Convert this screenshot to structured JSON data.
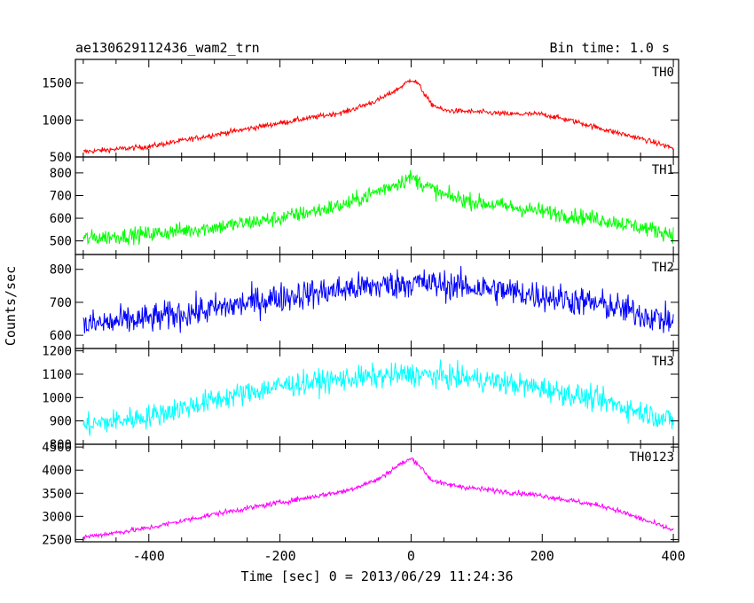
{
  "header": {
    "title": "ae130629112436_wam2_trn",
    "bin_time": "Bin time: 1.0 s"
  },
  "chart_data": {
    "type": "line",
    "xlabel": "Time [sec] 0 = 2013/06/29 11:24:36",
    "ylabel": "Counts/sec",
    "xlim": [
      -512,
      408
    ],
    "x_ticks": [
      -400,
      -200,
      0,
      200,
      400
    ],
    "grid": false,
    "panels": [
      {
        "name": "TH0",
        "color": "#ff0000",
        "ylim": [
          500,
          1820
        ],
        "y_ticks": [
          500,
          1000,
          1500
        ],
        "noise": 35,
        "points": [
          [
            -500,
            570
          ],
          [
            -400,
            640
          ],
          [
            -300,
            800
          ],
          [
            -200,
            960
          ],
          [
            -100,
            1110
          ],
          [
            -50,
            1270
          ],
          [
            -20,
            1420
          ],
          [
            0,
            1550
          ],
          [
            10,
            1500
          ],
          [
            30,
            1220
          ],
          [
            50,
            1130
          ],
          [
            100,
            1110
          ],
          [
            150,
            1080
          ],
          [
            200,
            1080
          ],
          [
            250,
            980
          ],
          [
            300,
            860
          ],
          [
            350,
            750
          ],
          [
            400,
            620
          ]
        ]
      },
      {
        "name": "TH1",
        "color": "#00ff00",
        "ylim": [
          440,
          870
        ],
        "y_ticks": [
          500,
          600,
          700,
          800
        ],
        "noise": 35,
        "points": [
          [
            -500,
            510
          ],
          [
            -400,
            530
          ],
          [
            -300,
            560
          ],
          [
            -200,
            600
          ],
          [
            -100,
            660
          ],
          [
            -50,
            720
          ],
          [
            0,
            780
          ],
          [
            50,
            700
          ],
          [
            100,
            670
          ],
          [
            200,
            630
          ],
          [
            300,
            590
          ],
          [
            400,
            530
          ]
        ]
      },
      {
        "name": "TH2",
        "color": "#0000ff",
        "ylim": [
          560,
          845
        ],
        "y_ticks": [
          600,
          700,
          800
        ],
        "noise": 45,
        "points": [
          [
            -500,
            630
          ],
          [
            -400,
            650
          ],
          [
            -300,
            680
          ],
          [
            -200,
            715
          ],
          [
            -100,
            740
          ],
          [
            0,
            760
          ],
          [
            100,
            745
          ],
          [
            200,
            720
          ],
          [
            300,
            690
          ],
          [
            400,
            640
          ]
        ]
      },
      {
        "name": "TH3",
        "color": "#00ffff",
        "ylim": [
          800,
          1210
        ],
        "y_ticks": [
          800,
          900,
          1000,
          1100,
          1200
        ],
        "noise": 50,
        "points": [
          [
            -500,
            880
          ],
          [
            -400,
            920
          ],
          [
            -300,
            990
          ],
          [
            -200,
            1050
          ],
          [
            -100,
            1080
          ],
          [
            0,
            1100
          ],
          [
            100,
            1080
          ],
          [
            200,
            1040
          ],
          [
            300,
            980
          ],
          [
            400,
            900
          ]
        ]
      },
      {
        "name": "TH0123",
        "color": "#ff00ff",
        "ylim": [
          2450,
          4560
        ],
        "y_ticks": [
          2500,
          3000,
          3500,
          4000,
          4500
        ],
        "noise": 55,
        "points": [
          [
            -500,
            2550
          ],
          [
            -400,
            2750
          ],
          [
            -300,
            3050
          ],
          [
            -200,
            3300
          ],
          [
            -100,
            3550
          ],
          [
            -50,
            3800
          ],
          [
            -20,
            4100
          ],
          [
            0,
            4250
          ],
          [
            10,
            4150
          ],
          [
            30,
            3800
          ],
          [
            50,
            3700
          ],
          [
            100,
            3600
          ],
          [
            200,
            3450
          ],
          [
            300,
            3200
          ],
          [
            400,
            2700
          ]
        ]
      }
    ]
  }
}
